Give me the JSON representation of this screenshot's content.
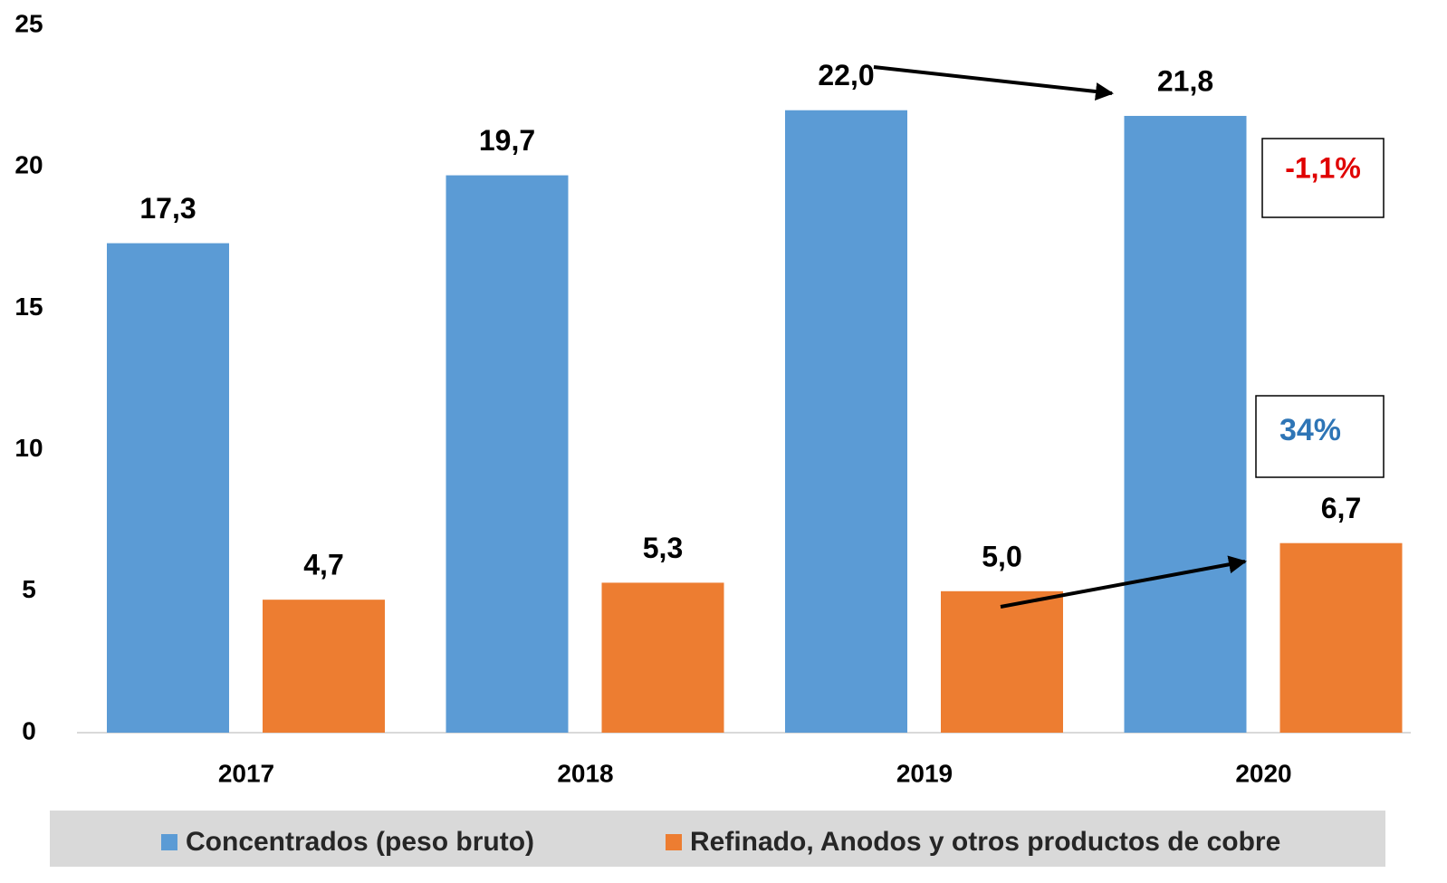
{
  "chart_data": {
    "type": "bar",
    "categories": [
      "2017",
      "2018",
      "2019",
      "2020"
    ],
    "series": [
      {
        "name": "Concentrados (peso bruto)",
        "color": "#5b9bd5",
        "values": [
          17.3,
          19.7,
          22.0,
          21.8
        ],
        "value_labels": [
          "17,3",
          "19,7",
          "22,0",
          "21,8"
        ]
      },
      {
        "name": "Refinado, Anodos y otros productos de cobre",
        "color": "#ed7d31",
        "values": [
          4.7,
          5.3,
          5.0,
          6.7
        ],
        "value_labels": [
          "4,7",
          "5,3",
          "5,0",
          "6,7"
        ]
      }
    ],
    "ylim": [
      0,
      25
    ],
    "yticks": [
      0,
      5,
      10,
      15,
      20,
      25
    ],
    "grid": false,
    "annotations": [
      "-1,1%",
      "34%"
    ]
  }
}
